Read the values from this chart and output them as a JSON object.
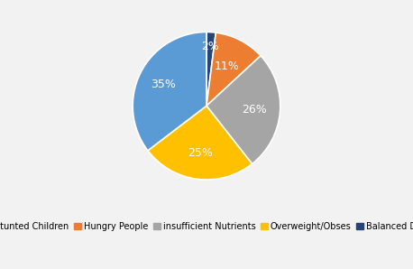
{
  "labels": [
    "Balanced Diet",
    "Hungry People",
    "insufficient Nutrients",
    "Overweight/Obses",
    "Stunted Children"
  ],
  "values": [
    2,
    11,
    26,
    25,
    35
  ],
  "colors": [
    "#264478",
    "#ed7d31",
    "#a5a5a5",
    "#ffc000",
    "#5b9bd5"
  ],
  "legend_labels": [
    "Stunted Children",
    "Hungry People",
    "insufficient Nutrients",
    "Overweight/Obses",
    "Balanced Diet"
  ],
  "legend_colors": [
    "#5b9bd5",
    "#ed7d31",
    "#a5a5a5",
    "#ffc000",
    "#264478"
  ],
  "startangle": 90,
  "pct_labels": [
    "2%",
    "11%",
    "26%",
    "25%",
    "35%"
  ],
  "background_color": "#f2f2f2",
  "text_color": "#ffffff",
  "pct_fontsize": 9,
  "legend_fontsize": 7
}
